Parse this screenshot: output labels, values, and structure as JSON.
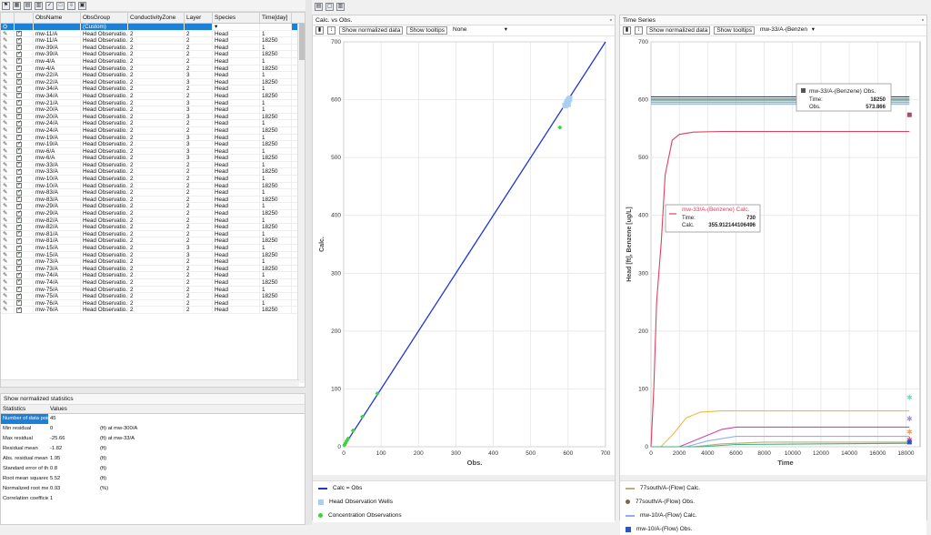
{
  "grid": {
    "columns": [
      "",
      "",
      "ObsName",
      "ObsGroup",
      "ConductivityZone",
      "Layer",
      "Species",
      "Time[day]"
    ],
    "custom_label": "(Custom)",
    "rows": [
      [
        "mw-11/A",
        "Head Observatio...",
        "2",
        "2",
        "Head",
        "1"
      ],
      [
        "mw-11/A",
        "Head Observatio...",
        "2",
        "2",
        "Head",
        "18250"
      ],
      [
        "mw-39/A",
        "Head Observatio...",
        "2",
        "2",
        "Head",
        "1"
      ],
      [
        "mw-39/A",
        "Head Observatio...",
        "2",
        "2",
        "Head",
        "18250"
      ],
      [
        "mw-4/A",
        "Head Observatio...",
        "2",
        "2",
        "Head",
        "1"
      ],
      [
        "mw-4/A",
        "Head Observatio...",
        "2",
        "2",
        "Head",
        "18250"
      ],
      [
        "mw-22/A",
        "Head Observatio...",
        "2",
        "3",
        "Head",
        "1"
      ],
      [
        "mw-22/A",
        "Head Observatio...",
        "2",
        "3",
        "Head",
        "18250"
      ],
      [
        "mw-34/A",
        "Head Observatio...",
        "2",
        "2",
        "Head",
        "1"
      ],
      [
        "mw-34/A",
        "Head Observatio...",
        "2",
        "2",
        "Head",
        "18250"
      ],
      [
        "mw-21/A",
        "Head Observatio...",
        "2",
        "3",
        "Head",
        "1"
      ],
      [
        "mw-20/A",
        "Head Observatio...",
        "2",
        "3",
        "Head",
        "1"
      ],
      [
        "mw-20/A",
        "Head Observatio...",
        "2",
        "3",
        "Head",
        "18250"
      ],
      [
        "mw-24/A",
        "Head Observatio...",
        "2",
        "2",
        "Head",
        "1"
      ],
      [
        "mw-24/A",
        "Head Observatio...",
        "2",
        "2",
        "Head",
        "18250"
      ],
      [
        "mw-19/A",
        "Head Observatio...",
        "2",
        "3",
        "Head",
        "1"
      ],
      [
        "mw-19/A",
        "Head Observatio...",
        "2",
        "3",
        "Head",
        "18250"
      ],
      [
        "mw-6/A",
        "Head Observatio...",
        "2",
        "3",
        "Head",
        "1"
      ],
      [
        "mw-6/A",
        "Head Observatio...",
        "2",
        "3",
        "Head",
        "18250"
      ],
      [
        "mw-33/A",
        "Head Observatio...",
        "2",
        "2",
        "Head",
        "1"
      ],
      [
        "mw-33/A",
        "Head Observatio...",
        "2",
        "2",
        "Head",
        "18250"
      ],
      [
        "mw-10/A",
        "Head Observatio...",
        "2",
        "2",
        "Head",
        "1"
      ],
      [
        "mw-10/A",
        "Head Observatio...",
        "2",
        "2",
        "Head",
        "18250"
      ],
      [
        "mw-83/A",
        "Head Observatio...",
        "2",
        "2",
        "Head",
        "1"
      ],
      [
        "mw-83/A",
        "Head Observatio...",
        "2",
        "2",
        "Head",
        "18250"
      ],
      [
        "mw-29/A",
        "Head Observatio...",
        "2",
        "2",
        "Head",
        "1"
      ],
      [
        "mw-29/A",
        "Head Observatio...",
        "2",
        "2",
        "Head",
        "18250"
      ],
      [
        "mw-82/A",
        "Head Observatio...",
        "2",
        "2",
        "Head",
        "1"
      ],
      [
        "mw-82/A",
        "Head Observatio...",
        "2",
        "2",
        "Head",
        "18250"
      ],
      [
        "mw-81/A",
        "Head Observatio...",
        "2",
        "2",
        "Head",
        "1"
      ],
      [
        "mw-81/A",
        "Head Observatio...",
        "2",
        "2",
        "Head",
        "18250"
      ],
      [
        "mw-15/A",
        "Head Observatio...",
        "2",
        "3",
        "Head",
        "1"
      ],
      [
        "mw-15/A",
        "Head Observatio...",
        "2",
        "3",
        "Head",
        "18250"
      ],
      [
        "mw-73/A",
        "Head Observatio...",
        "2",
        "2",
        "Head",
        "1"
      ],
      [
        "mw-73/A",
        "Head Observatio...",
        "2",
        "2",
        "Head",
        "18250"
      ],
      [
        "mw-74/A",
        "Head Observatio...",
        "2",
        "2",
        "Head",
        "1"
      ],
      [
        "mw-74/A",
        "Head Observatio...",
        "2",
        "2",
        "Head",
        "18250"
      ],
      [
        "mw-75/A",
        "Head Observatio...",
        "2",
        "2",
        "Head",
        "1"
      ],
      [
        "mw-75/A",
        "Head Observatio...",
        "2",
        "2",
        "Head",
        "18250"
      ],
      [
        "mw-76/A",
        "Head Observatio...",
        "2",
        "2",
        "Head",
        "1"
      ],
      [
        "mw-76/A",
        "Head Observatio...",
        "2",
        "2",
        "Head",
        "18250"
      ]
    ]
  },
  "stats": {
    "title": "Show normalized statistics",
    "head_name": "Statistics",
    "head_value": "Values",
    "rows": [
      {
        "name": "Number of data points",
        "value": "45",
        "unit": ""
      },
      {
        "name": "Min residual",
        "value": "0",
        "unit": "(ft) at mw-300/A"
      },
      {
        "name": "Max residual",
        "value": "-25.66",
        "unit": "(ft) at mw-33/A"
      },
      {
        "name": "Residual mean",
        "value": "-1.82",
        "unit": "(ft)"
      },
      {
        "name": "Abs. residual mean",
        "value": "1.95",
        "unit": "(ft)"
      },
      {
        "name": "Standard error of the ...",
        "value": "0.8",
        "unit": "(ft)"
      },
      {
        "name": "Root mean squared",
        "value": "5.52",
        "unit": "(ft)"
      },
      {
        "name": "Normalized root mea...",
        "value": "0.93",
        "unit": "(%)"
      },
      {
        "name": "Correlation coefficient",
        "value": "1",
        "unit": ""
      }
    ]
  },
  "calc_panel": {
    "title": "Calc. vs Obs.",
    "normalized_label": "Show normalized data",
    "tooltips_label": "Show tooltips",
    "dropdown_value": "None",
    "legend": [
      {
        "label": "Calc = Obs",
        "color": "#1f36d6",
        "kind": "line"
      },
      {
        "label": "Head Observation Wells",
        "color": "#a9d0f0",
        "kind": "square"
      },
      {
        "label": "Concentration Observations",
        "color": "#3fd13f",
        "kind": "dot"
      }
    ]
  },
  "ts_panel": {
    "title": "Time Series",
    "normalized_label": "Show normalized data",
    "tooltips_label": "Show tooltips",
    "dropdown_value": "mw-33/A-(Benzen",
    "tooltip_obs": {
      "title": "mw-33/A-(Benzene) Obs.",
      "time_label": "Time:",
      "time": "18250",
      "value_label": "Obs.",
      "value": "573.866"
    },
    "tooltip_calc": {
      "title": "mw-33/A-(Benzene) Calc.",
      "time_label": "Time:",
      "time": "730",
      "value_label": "Calc.",
      "value": "355.912144106496"
    },
    "legend": [
      {
        "label": "77south/A-(Flow) Calc.",
        "color": "#b9b07a",
        "kind": "line"
      },
      {
        "label": "77south/A-(Flow) Obs.",
        "color": "#7a6a40",
        "kind": "dot"
      },
      {
        "label": "mw-10/A-(Flow) Calc.",
        "color": "#8fb0f0",
        "kind": "line"
      },
      {
        "label": "mw-10/A-(Flow) Obs.",
        "color": "#2a55c8",
        "kind": "square"
      }
    ]
  },
  "chart_data": [
    {
      "type": "scatter",
      "title": "Calc. vs Obs.",
      "xlabel": "Obs.",
      "ylabel": "Calc.",
      "xlim": [
        0,
        700
      ],
      "ylim": [
        0,
        700
      ],
      "xticks": [
        0,
        100,
        200,
        300,
        400,
        500,
        600,
        700
      ],
      "yticks": [
        0,
        100,
        200,
        300,
        400,
        500,
        600,
        700
      ],
      "grid": true,
      "series": [
        {
          "name": "Calc = Obs",
          "kind": "line",
          "x": [
            0,
            700
          ],
          "y": [
            0,
            700
          ]
        },
        {
          "name": "Head Observation Wells",
          "kind": "scatter",
          "x": [
            592,
            596,
            598,
            600,
            602,
            604,
            598,
            600
          ],
          "y": [
            590,
            594,
            596,
            598,
            600,
            602,
            596,
            592
          ]
        },
        {
          "name": "Concentration Observations",
          "kind": "scatter",
          "x": [
            2,
            5,
            8,
            12,
            25,
            50,
            90,
            578
          ],
          "y": [
            3,
            6,
            10,
            14,
            28,
            52,
            92,
            552
          ]
        }
      ]
    },
    {
      "type": "line",
      "title": "Time Series",
      "xlabel": "Time",
      "ylabel": "Head [ft], Benzene [ug/L]",
      "xlim": [
        0,
        19000
      ],
      "ylim": [
        0,
        700
      ],
      "xticks": [
        0,
        2000,
        4000,
        6000,
        8000,
        10000,
        12000,
        14000,
        16000,
        18000
      ],
      "yticks": [
        0,
        100,
        200,
        300,
        400,
        500,
        600,
        700
      ],
      "grid": true,
      "series": [
        {
          "color": "#e04060",
          "x": [
            0,
            200,
            400,
            730,
            1000,
            1500,
            2000,
            3000,
            5000,
            18250
          ],
          "y": [
            0,
            100,
            250,
            355.9,
            470,
            530,
            540,
            544,
            545,
            545
          ]
        },
        {
          "color": "#f0b840",
          "x": [
            0,
            700,
            1500,
            2500,
            3500,
            5000,
            18250
          ],
          "y": [
            0,
            0,
            20,
            50,
            60,
            62,
            62
          ]
        },
        {
          "color": "#e040a0",
          "x": [
            0,
            2000,
            4000,
            5000,
            6000,
            18250
          ],
          "y": [
            0,
            0,
            20,
            30,
            34,
            34
          ]
        },
        {
          "color": "#8fb0f0",
          "x": [
            0,
            2500,
            4000,
            6000,
            18250
          ],
          "y": [
            0,
            0,
            10,
            18,
            18
          ]
        },
        {
          "color": "#b9b07a",
          "x": [
            0,
            3000,
            5000,
            8000,
            18250
          ],
          "y": [
            0,
            0,
            5,
            8,
            8
          ]
        },
        {
          "color": "#40b080",
          "x": [
            0,
            3500,
            6000,
            18250
          ],
          "y": [
            0,
            0,
            4,
            6
          ]
        },
        {
          "color": "#345",
          "x": [
            0,
            18250
          ],
          "y": [
            605,
            605
          ]
        },
        {
          "color": "#557",
          "x": [
            0,
            18250
          ],
          "y": [
            601,
            601
          ]
        },
        {
          "color": "#6a8",
          "x": [
            0,
            18250
          ],
          "y": [
            598,
            598
          ]
        },
        {
          "color": "#89a",
          "x": [
            0,
            18250
          ],
          "y": [
            595,
            595
          ]
        },
        {
          "color": "#9bc",
          "x": [
            0,
            18250
          ],
          "y": [
            592,
            592
          ]
        }
      ],
      "markers": [
        {
          "x": 18250,
          "y": 573.866,
          "color": "#995566",
          "shape": "square"
        },
        {
          "x": 18250,
          "y": 85,
          "color": "#6fe0b0",
          "shape": "star"
        },
        {
          "x": 18250,
          "y": 48,
          "color": "#a28adf",
          "shape": "star"
        },
        {
          "x": 18250,
          "y": 25,
          "color": "#f0a060",
          "shape": "star"
        },
        {
          "x": 18250,
          "y": 12,
          "color": "#d05080",
          "shape": "star"
        },
        {
          "x": 18250,
          "y": 8,
          "color": "#2a55c8",
          "shape": "square"
        }
      ]
    }
  ]
}
